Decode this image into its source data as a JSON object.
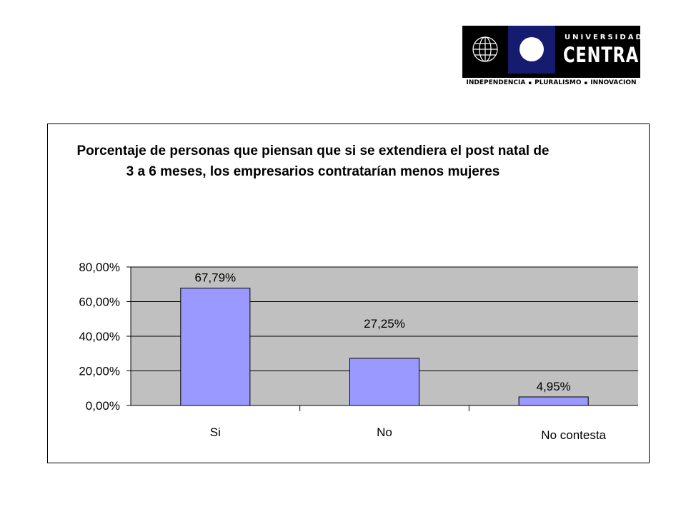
{
  "logo": {
    "university_word": "UNIVERSIDAD",
    "name": "CENTRAL",
    "tagline": [
      "INDEPENDENCIA",
      "PLURALISMO",
      "INNOVACION"
    ]
  },
  "chart_data": {
    "type": "bar",
    "title": "Porcentaje de personas que piensan que si se extendiera el post natal de 3 a 6 meses, los empresarios contratarían menos mujeres",
    "categories": [
      "Si",
      "No",
      "No contesta"
    ],
    "values": [
      67.79,
      27.25,
      4.95
    ],
    "data_labels": [
      "67,79%",
      "27,25%",
      "4,95%"
    ],
    "ylim": [
      0,
      80
    ],
    "y_ticks": [
      0,
      20,
      40,
      60,
      80
    ],
    "y_tick_labels": [
      "0,00%",
      "20,00%",
      "40,00%",
      "60,00%",
      "80,00%"
    ],
    "xlabel": "",
    "ylabel": "",
    "grid": true,
    "legend": "none",
    "colors": {
      "bar": "#9999ff",
      "plot_background": "#c0c0c0",
      "bar_border": "#000000"
    }
  }
}
